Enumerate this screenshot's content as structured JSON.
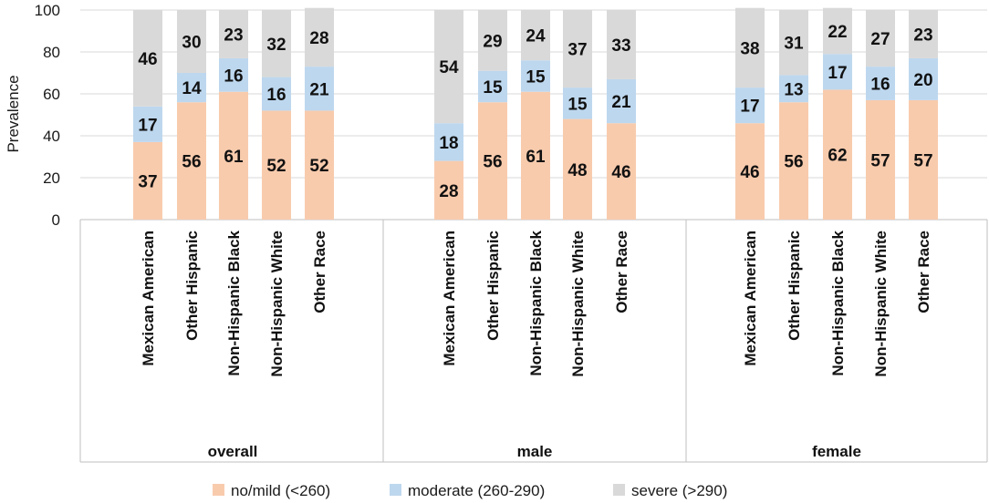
{
  "chart_data": {
    "type": "bar",
    "stacked": true,
    "title": "",
    "xlabel": "",
    "ylabel": "Prevalence",
    "ylim": [
      0,
      100
    ],
    "yticks": [
      0,
      20,
      40,
      60,
      80,
      100
    ],
    "gridlines": true,
    "legend_position": "bottom",
    "categories": [
      "Mexican American",
      "Other Hispanic",
      "Non-Hispanic Black",
      "Non-Hispanic White",
      "Other Race"
    ],
    "groups": [
      {
        "name": "overall",
        "series": [
          {
            "name": "no/mild (<260)",
            "values": [
              37,
              56,
              61,
              52,
              52
            ]
          },
          {
            "name": "moderate (260-290)",
            "values": [
              17,
              14,
              16,
              16,
              21
            ]
          },
          {
            "name": "severe (>290)",
            "values": [
              46,
              30,
              23,
              32,
              28
            ]
          }
        ]
      },
      {
        "name": "male",
        "series": [
          {
            "name": "no/mild (<260)",
            "values": [
              28,
              56,
              61,
              48,
              46
            ]
          },
          {
            "name": "moderate (260-290)",
            "values": [
              18,
              15,
              15,
              15,
              21
            ]
          },
          {
            "name": "severe (>290)",
            "values": [
              54,
              29,
              24,
              37,
              33
            ]
          }
        ]
      },
      {
        "name": "female",
        "series": [
          {
            "name": "no/mild (<260)",
            "values": [
              46,
              56,
              62,
              57,
              57
            ]
          },
          {
            "name": "moderate (260-290)",
            "values": [
              17,
              13,
              17,
              16,
              20
            ]
          },
          {
            "name": "severe (>290)",
            "values": [
              38,
              31,
              22,
              27,
              23
            ]
          }
        ]
      }
    ],
    "legend": [
      {
        "name": "no/mild (<260)",
        "color": "#F8CBAD"
      },
      {
        "name": "moderate (260-290)",
        "color": "#BDD7EE"
      },
      {
        "name": "severe (>290)",
        "color": "#D9D9D9"
      }
    ]
  }
}
